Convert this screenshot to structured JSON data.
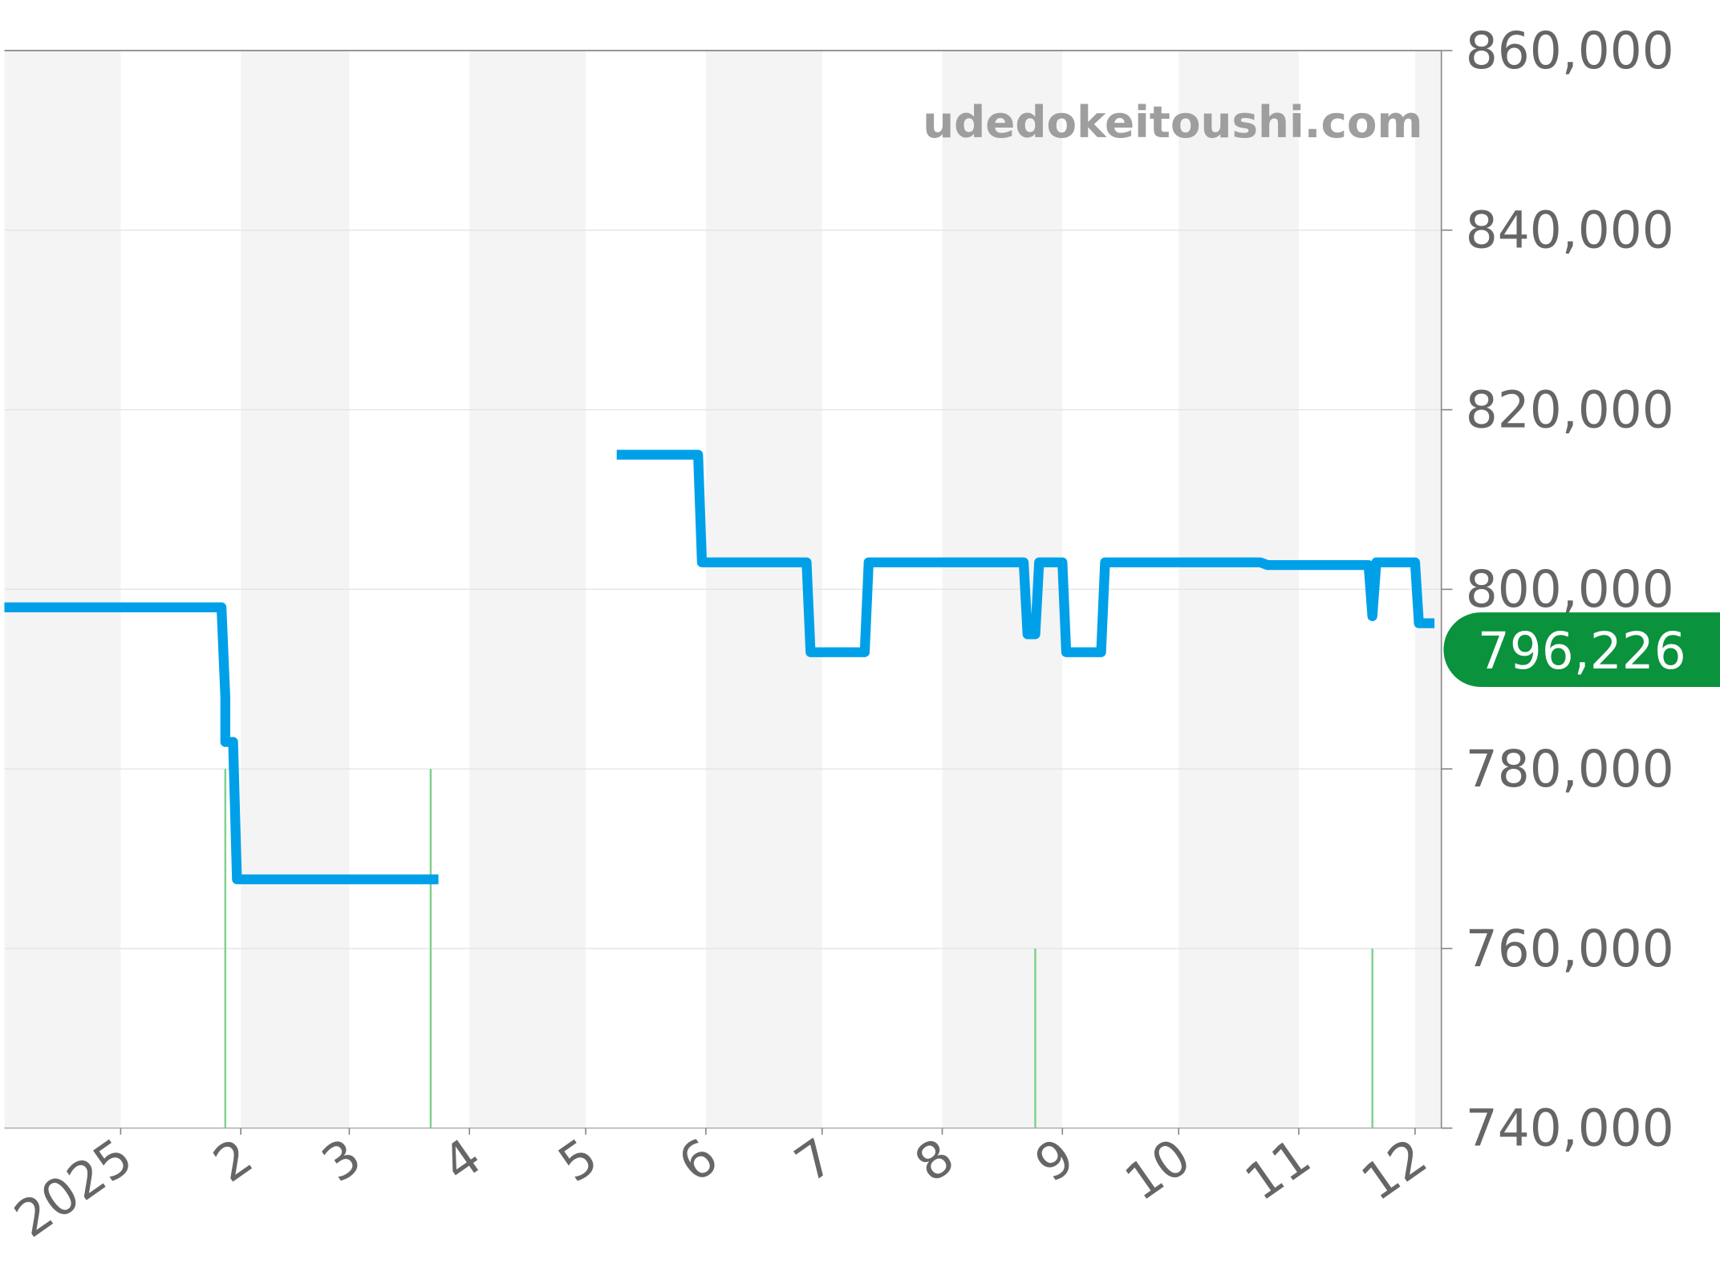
{
  "chart_data": {
    "type": "line",
    "title": "",
    "xlabel": "",
    "ylabel": "",
    "watermark": "udedokeitoushi.com",
    "ylim": [
      740000,
      860000
    ],
    "yticks": [
      740000,
      760000,
      780000,
      800000,
      820000,
      840000,
      860000
    ],
    "ytick_labels": [
      "740,000",
      "760,000",
      "780,000",
      "800,000",
      "820,000",
      "840,000",
      "860,000"
    ],
    "xlim": [
      "2024-12-02",
      "2025-12-08"
    ],
    "xticks": [
      "2025-01-01",
      "2025-02-01",
      "2025-03-01",
      "2025-04-01",
      "2025-05-01",
      "2025-06-01",
      "2025-07-01",
      "2025-08-01",
      "2025-09-01",
      "2025-10-01",
      "2025-11-01",
      "2025-12-01"
    ],
    "xtick_labels": [
      "2025",
      "2",
      "3",
      "4",
      "5",
      "6",
      "7",
      "8",
      "9",
      "10",
      "11",
      "12"
    ],
    "grid": true,
    "month_shading": true,
    "line_color": "#00a0e9",
    "event_color": "#7fd18f",
    "badge_color": "#0a923c",
    "current_value_label": "796,226",
    "series": [
      {
        "segments": [
          [
            [
              "2024-12-02",
              798000
            ],
            [
              "2025-01-27",
              798000
            ],
            [
              "2025-01-28",
              788000
            ],
            [
              "2025-01-28",
              783000
            ],
            [
              "2025-01-30",
              783000
            ],
            [
              "2025-01-31",
              767700
            ],
            [
              "2025-03-24",
              767700
            ]
          ],
          [
            [
              "2025-05-09",
              815000
            ],
            [
              "2025-05-30",
              815000
            ],
            [
              "2025-05-31",
              803000
            ],
            [
              "2025-06-27",
              803000
            ],
            [
              "2025-06-28",
              793000
            ],
            [
              "2025-07-12",
              793000
            ],
            [
              "2025-07-13",
              803000
            ],
            [
              "2025-08-22",
              803000
            ],
            [
              "2025-08-23",
              795000
            ],
            [
              "2025-08-25",
              795000
            ],
            [
              "2025-08-26",
              803000
            ],
            [
              "2025-09-01",
              803000
            ],
            [
              "2025-09-02",
              793000
            ],
            [
              "2025-09-11",
              793000
            ],
            [
              "2025-09-12",
              803000
            ],
            [
              "2025-10-22",
              803000
            ],
            [
              "2025-10-24",
              802700
            ],
            [
              "2025-11-19",
              802700
            ],
            [
              "2025-11-20",
              797000
            ],
            [
              "2025-11-21",
              803000
            ],
            [
              "2025-12-01",
              803000
            ],
            [
              "2025-12-02",
              796226
            ],
            [
              "2025-12-06",
              796226
            ]
          ]
        ]
      }
    ],
    "events": [
      {
        "date": "2025-01-28",
        "top": 780000
      },
      {
        "date": "2025-03-22",
        "top": 780000
      },
      {
        "date": "2025-08-25",
        "top": 760000
      },
      {
        "date": "2025-11-20",
        "top": 760000
      }
    ]
  }
}
